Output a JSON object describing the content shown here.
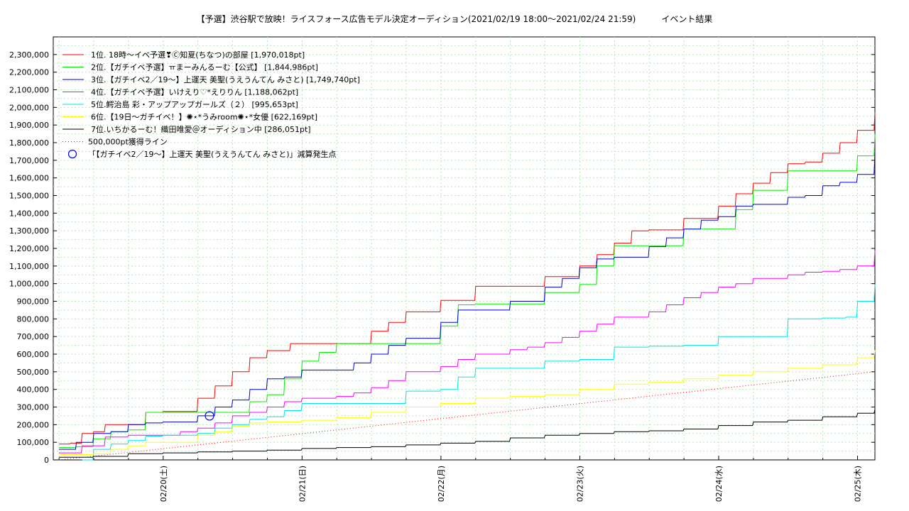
{
  "chart_data": {
    "type": "line",
    "title": "【予選】渋谷駅で放映！ライスフォース広告モデル決定オーディション(2021/02/19 18:00～2021/02/24 21:59)　　　イベント結果",
    "xlabel": "",
    "ylabel": "",
    "x_ticks": [
      "02/20(土)",
      "02/21(日)",
      "02/22(月)",
      "02/23(火)",
      "02/24(水)",
      "02/25(木)"
    ],
    "x_domain_hours": [
      -19,
      123
    ],
    "ylim": [
      0,
      2400000
    ],
    "y_ticks": [
      0,
      100000,
      200000,
      300000,
      400000,
      500000,
      600000,
      700000,
      800000,
      900000,
      1000000,
      1100000,
      1200000,
      1300000,
      1400000,
      1500000,
      1600000,
      1700000,
      1800000,
      1900000,
      2000000,
      2100000,
      2200000,
      2300000
    ],
    "y_tick_labels": [
      "0",
      "100,000",
      "200,000",
      "300,000",
      "400,000",
      "500,000",
      "600,000",
      "700,000",
      "800,000",
      "900,000",
      "1,000,000",
      "1,100,000",
      "1,200,000",
      "1,300,000",
      "1,400,000",
      "1,500,000",
      "1,600,000",
      "1,700,000",
      "1,800,000",
      "1,900,000",
      "2,000,000",
      "2,100,000",
      "2,200,000",
      "2,300,000"
    ],
    "grid": true,
    "legend_position": "top-left",
    "series": [
      {
        "name": "1位. 18時〜イベ予選❣Ⓒ知夏(ちなつ)の部屋 [1,970,018pt]",
        "color": "#ff0000",
        "x": [
          -18,
          -16,
          -14,
          -12,
          -10,
          -6,
          -3,
          0,
          3,
          6,
          9,
          12,
          15,
          18,
          22,
          25,
          30,
          36,
          39,
          42,
          45,
          48,
          51,
          54,
          58,
          60,
          66,
          72,
          75,
          78,
          81,
          84,
          90,
          96,
          99,
          102,
          105,
          108,
          111,
          114,
          117,
          120,
          123
        ],
        "y": [
          90000,
          95000,
          150000,
          160000,
          200000,
          200000,
          270000,
          275000,
          275000,
          350000,
          420000,
          500000,
          580000,
          620000,
          660000,
          660000,
          660000,
          730000,
          780000,
          840000,
          840000,
          905000,
          905000,
          985000,
          985000,
          985000,
          1040000,
          1100000,
          1165000,
          1230000,
          1300000,
          1305000,
          1370000,
          1440000,
          1510000,
          1570000,
          1630000,
          1680000,
          1690000,
          1740000,
          1800000,
          1870000,
          1970018
        ]
      },
      {
        "name": "2位.【ガチイベ予選】ㅠまーみんるーむ【公式】 [1,844,986pt]",
        "color": "#00ee00",
        "x": [
          -18,
          -15,
          -12,
          -9,
          -6,
          -3,
          0,
          6,
          9,
          12,
          15,
          18,
          21,
          24,
          27,
          30,
          36,
          42,
          48,
          51,
          54,
          60,
          66,
          72,
          75,
          78,
          84,
          90,
          96,
          99,
          102,
          108,
          111,
          114,
          117,
          120,
          123
        ],
        "y": [
          70000,
          75000,
          120000,
          160000,
          170000,
          270000,
          270000,
          270000,
          270000,
          270000,
          330000,
          370000,
          460000,
          560000,
          610000,
          660000,
          660000,
          660000,
          760000,
          880000,
          885000,
          885000,
          950000,
          995000,
          1100000,
          1215000,
          1215000,
          1310000,
          1310000,
          1420000,
          1530000,
          1640000,
          1640000,
          1640000,
          1640000,
          1725000,
          1844986
        ]
      },
      {
        "name": "3位.【ガチイベ2／19〜】上運天 美聖(うえうんてん みさと) [1,749,740pt]",
        "color": "#0000dd",
        "x": [
          -18,
          -15,
          -12,
          -9,
          -6,
          -3,
          0,
          6,
          9,
          12,
          15,
          18,
          21,
          24,
          30,
          33,
          36,
          39,
          42,
          48,
          51,
          54,
          60,
          66,
          69,
          72,
          75,
          78,
          84,
          87,
          90,
          93,
          96,
          99,
          102,
          108,
          111,
          114,
          117,
          120,
          123
        ],
        "y": [
          60000,
          100000,
          150000,
          160000,
          200000,
          210000,
          215000,
          250000,
          300000,
          340000,
          400000,
          460000,
          470000,
          510000,
          510000,
          550000,
          600000,
          650000,
          690000,
          780000,
          850000,
          850000,
          900000,
          980000,
          1030000,
          1090000,
          1140000,
          1150000,
          1210000,
          1260000,
          1310000,
          1360000,
          1380000,
          1440000,
          1450000,
          1490000,
          1500000,
          1555000,
          1575000,
          1620000,
          1749740
        ]
      },
      {
        "name": "4位.【ガチイベ予選】いけえり♡*えりりん [1,188,062pt]",
        "color": "#ff00ff",
        "x": [
          -18,
          -14,
          -10,
          -6,
          0,
          3,
          6,
          9,
          12,
          15,
          18,
          21,
          24,
          30,
          33,
          36,
          39,
          42,
          48,
          51,
          54,
          60,
          63,
          66,
          69,
          72,
          75,
          78,
          84,
          87,
          90,
          93,
          96,
          99,
          102,
          108,
          111,
          114,
          117,
          120,
          123
        ],
        "y": [
          40000,
          80000,
          130000,
          140000,
          140000,
          160000,
          180000,
          210000,
          250000,
          270000,
          300000,
          330000,
          350000,
          360000,
          380000,
          410000,
          450000,
          500000,
          530000,
          570000,
          600000,
          625000,
          640000,
          665000,
          695000,
          730000,
          770000,
          810000,
          840000,
          880000,
          920000,
          950000,
          980000,
          1000000,
          1030000,
          1050000,
          1065000,
          1070000,
          1080000,
          1100000,
          1188062
        ]
      },
      {
        "name": "5位.鰐治島 彩・アップアップガールズ（２） [995,653pt]",
        "color": "#00e5e5",
        "x": [
          -14,
          -12,
          -9,
          -6,
          -3,
          0,
          6,
          9,
          12,
          15,
          18,
          21,
          24,
          36,
          42,
          48,
          51,
          54,
          60,
          66,
          72,
          78,
          84,
          90,
          96,
          102,
          108,
          114,
          118,
          120,
          123
        ],
        "y": [
          0,
          60000,
          90000,
          110000,
          135000,
          140000,
          150000,
          180000,
          200000,
          230000,
          245000,
          280000,
          320000,
          320000,
          390000,
          400000,
          470000,
          520000,
          520000,
          560000,
          570000,
          640000,
          645000,
          650000,
          700000,
          700000,
          800000,
          805000,
          810000,
          900000,
          995653
        ]
      },
      {
        "name": "6位.【19日〜ガチイベ！】✺⋆*うみroom✺⋆*女優 [622,169pt]",
        "color": "#ffff00",
        "x": [
          -18,
          -12,
          -9,
          -6,
          -3,
          0,
          6,
          9,
          12,
          15,
          18,
          24,
          30,
          36,
          42,
          48,
          54,
          60,
          66,
          72,
          78,
          84,
          90,
          96,
          102,
          108,
          114,
          120,
          123
        ],
        "y": [
          30000,
          35000,
          60000,
          80000,
          100000,
          100000,
          140000,
          160000,
          190000,
          210000,
          215000,
          225000,
          240000,
          270000,
          300000,
          320000,
          350000,
          360000,
          370000,
          400000,
          430000,
          440000,
          460000,
          480000,
          500000,
          520000,
          540000,
          580000,
          622169
        ]
      },
      {
        "name": "7位.いちかるーむ！織田唯愛＠オーディション中 [286,051pt]",
        "color": "#000000",
        "x": [
          -18,
          -12,
          -6,
          0,
          6,
          12,
          18,
          24,
          30,
          36,
          42,
          48,
          54,
          60,
          66,
          72,
          78,
          84,
          90,
          96,
          102,
          108,
          114,
          120,
          123
        ],
        "y": [
          15000,
          20000,
          35000,
          40000,
          45000,
          50000,
          55000,
          65000,
          70000,
          75000,
          85000,
          95000,
          105000,
          125000,
          140000,
          150000,
          160000,
          165000,
          175000,
          195000,
          215000,
          225000,
          245000,
          265000,
          286051
        ]
      },
      {
        "name": "500,000pt獲得ライン",
        "color": "#ff0000",
        "dashed": true,
        "x": [
          -18,
          123
        ],
        "y": [
          0,
          500000
        ]
      }
    ],
    "markers": [
      {
        "name": "「【ガチイベ2／19〜】上運天 美聖(うえうんてん みさと)」減算発生点",
        "color": "#0000ff",
        "x": 8,
        "y": 250000
      }
    ]
  }
}
